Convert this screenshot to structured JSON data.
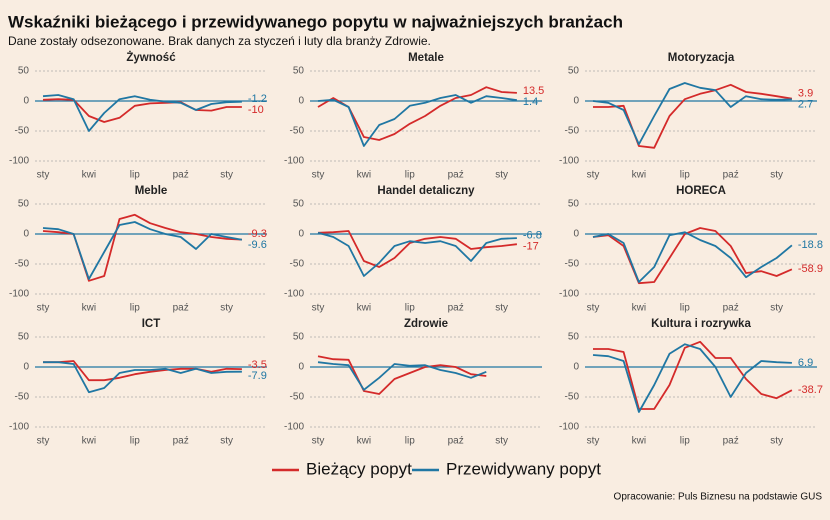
{
  "title": "Wskaźniki bieżącego i przewidywanego popytu w najważniejszych branżach",
  "subtitle": "Dane zostały odsezonowane. Brak danych za styczeń i luty dla branży Zdrowie.",
  "source": "Opracowanie: Puls Biznesu na podstawie GUS",
  "chart_data": [
    {
      "type": "line",
      "title": "Żywność",
      "categories": [
        "sty",
        null,
        null,
        "kwi",
        null,
        null,
        "lip",
        null,
        null,
        "paź",
        null,
        null,
        "sty",
        null
      ],
      "ylim": [
        -105,
        55
      ],
      "yticks": [
        50,
        0,
        -50,
        -100
      ],
      "grid": true,
      "series": [
        {
          "name": "Bieżący popyt",
          "color": "#d42a2a",
          "values": [
            2,
            3,
            2,
            -25,
            -35,
            -28,
            -8,
            -4,
            -3,
            -2,
            -15,
            -16,
            -10,
            -10
          ]
        },
        {
          "name": "Przewidywany popyt",
          "color": "#2077a3",
          "values": [
            8,
            10,
            3,
            -50,
            -20,
            3,
            8,
            2,
            -1,
            -3,
            -15,
            -5,
            -2,
            -1.2
          ]
        }
      ]
    },
    {
      "type": "line",
      "title": "Metale",
      "categories": [
        "sty",
        null,
        null,
        "kwi",
        null,
        null,
        "lip",
        null,
        null,
        "paź",
        null,
        null,
        "sty",
        null
      ],
      "ylim": [
        -105,
        55
      ],
      "yticks": [
        50,
        0,
        -50,
        -100
      ],
      "grid": true,
      "series": [
        {
          "name": "Bieżący popyt",
          "color": "#d42a2a",
          "values": [
            -10,
            5,
            -10,
            -60,
            -65,
            -55,
            -38,
            -25,
            -8,
            5,
            10,
            23,
            15,
            13.5
          ]
        },
        {
          "name": "Przewidywany popyt",
          "color": "#2077a3",
          "values": [
            0,
            2,
            -10,
            -75,
            -40,
            -30,
            -8,
            -3,
            5,
            10,
            -3,
            8,
            5,
            1.4
          ]
        }
      ]
    },
    {
      "type": "line",
      "title": "Motoryzacja",
      "categories": [
        "sty",
        null,
        null,
        "kwi",
        null,
        null,
        "lip",
        null,
        null,
        "paź",
        null,
        null,
        "sty",
        null
      ],
      "ylim": [
        -105,
        55
      ],
      "yticks": [
        50,
        0,
        -50,
        -100
      ],
      "grid": true,
      "series": [
        {
          "name": "Bieżący popyt",
          "color": "#d42a2a",
          "values": [
            -10,
            -10,
            -8,
            -75,
            -78,
            -25,
            3,
            12,
            18,
            27,
            15,
            12,
            8,
            3.9
          ]
        },
        {
          "name": "Przewidywany popyt",
          "color": "#2077a3",
          "values": [
            0,
            -3,
            -15,
            -72,
            -25,
            20,
            30,
            22,
            18,
            -10,
            8,
            3,
            2,
            2.7
          ]
        }
      ]
    },
    {
      "type": "line",
      "title": "Meble",
      "categories": [
        "sty",
        null,
        null,
        "kwi",
        null,
        null,
        "lip",
        null,
        null,
        "paź",
        null,
        null,
        "sty",
        null
      ],
      "ylim": [
        -105,
        55
      ],
      "yticks": [
        50,
        0,
        -50,
        -100
      ],
      "grid": true,
      "series": [
        {
          "name": "Bieżący popyt",
          "color": "#d42a2a",
          "values": [
            5,
            3,
            0,
            -78,
            -70,
            25,
            32,
            18,
            10,
            3,
            0,
            -5,
            -8,
            -9.3
          ]
        },
        {
          "name": "Przewidywany popyt",
          "color": "#2077a3",
          "values": [
            10,
            8,
            0,
            -75,
            -30,
            15,
            20,
            8,
            0,
            -5,
            -25,
            0,
            -5,
            -9.6
          ]
        }
      ]
    },
    {
      "type": "line",
      "title": "Handel detaliczny",
      "categories": [
        "sty",
        null,
        null,
        "kwi",
        null,
        null,
        "lip",
        null,
        null,
        "paź",
        null,
        null,
        "sty",
        null
      ],
      "ylim": [
        -105,
        55
      ],
      "yticks": [
        50,
        0,
        -50,
        -100
      ],
      "grid": true,
      "series": [
        {
          "name": "Bieżący popyt",
          "color": "#d42a2a",
          "values": [
            2,
            3,
            5,
            -45,
            -55,
            -40,
            -15,
            -8,
            -5,
            -8,
            -25,
            -22,
            -20,
            -17
          ]
        },
        {
          "name": "Przewidywany popyt",
          "color": "#2077a3",
          "values": [
            2,
            -5,
            -20,
            -70,
            -48,
            -20,
            -12,
            -15,
            -12,
            -20,
            -45,
            -15,
            -8,
            -6.8
          ]
        }
      ]
    },
    {
      "type": "line",
      "title": "HORECA",
      "categories": [
        "sty",
        null,
        null,
        "kwi",
        null,
        null,
        "lip",
        null,
        null,
        "paź",
        null,
        null,
        "sty",
        null
      ],
      "ylim": [
        -105,
        55
      ],
      "yticks": [
        50,
        0,
        -50,
        -100
      ],
      "grid": true,
      "series": [
        {
          "name": "Bieżący popyt",
          "color": "#d42a2a",
          "values": [
            -5,
            -2,
            -20,
            -82,
            -80,
            -40,
            0,
            10,
            5,
            -20,
            -65,
            -62,
            -70,
            -58.9
          ]
        },
        {
          "name": "Przewidywany popyt",
          "color": "#2077a3",
          "values": [
            -5,
            0,
            -15,
            -80,
            -55,
            -2,
            3,
            -10,
            -20,
            -40,
            -72,
            -55,
            -40,
            -18.8
          ]
        }
      ]
    },
    {
      "type": "line",
      "title": "ICT",
      "categories": [
        "sty",
        null,
        null,
        "kwi",
        null,
        null,
        "lip",
        null,
        null,
        "paź",
        null,
        null,
        "sty",
        null
      ],
      "ylim": [
        -105,
        55
      ],
      "yticks": [
        50,
        0,
        -50,
        -100
      ],
      "grid": true,
      "series": [
        {
          "name": "Bieżący popyt",
          "color": "#d42a2a",
          "values": [
            8,
            8,
            10,
            -22,
            -22,
            -18,
            -12,
            -8,
            -5,
            -3,
            -3,
            -8,
            -3,
            -3.5
          ]
        },
        {
          "name": "Przewidywany popyt",
          "color": "#2077a3",
          "values": [
            8,
            8,
            5,
            -42,
            -35,
            -10,
            -5,
            -5,
            -3,
            -10,
            -3,
            -10,
            -8,
            -7.9
          ]
        }
      ]
    },
    {
      "type": "line",
      "title": "Zdrowie",
      "categories": [
        "sty",
        null,
        null,
        "kwi",
        null,
        null,
        "lip",
        null,
        null,
        "paź",
        null,
        null,
        "sty",
        null
      ],
      "ylim": [
        -105,
        55
      ],
      "yticks": [
        50,
        0,
        -50,
        -100
      ],
      "grid": true,
      "series": [
        {
          "name": "Bieżący popyt",
          "color": "#d42a2a",
          "values": [
            18,
            13,
            12,
            -40,
            -45,
            -20,
            -10,
            0,
            3,
            0,
            -12,
            -15,
            null,
            null
          ]
        },
        {
          "name": "Przewidywany popyt",
          "color": "#2077a3",
          "values": [
            8,
            5,
            3,
            -38,
            -18,
            5,
            2,
            3,
            -5,
            -10,
            -18,
            -8,
            null,
            null
          ]
        }
      ]
    },
    {
      "type": "line",
      "title": "Kultura i rozrywka",
      "categories": [
        "sty",
        null,
        null,
        "kwi",
        null,
        null,
        "lip",
        null,
        null,
        "paź",
        null,
        null,
        "sty",
        null
      ],
      "ylim": [
        -105,
        55
      ],
      "yticks": [
        50,
        0,
        -50,
        -100
      ],
      "grid": true,
      "series": [
        {
          "name": "Bieżący popyt",
          "color": "#d42a2a",
          "values": [
            30,
            30,
            25,
            -70,
            -70,
            -30,
            32,
            42,
            15,
            15,
            -20,
            -45,
            -52,
            -38.7
          ]
        },
        {
          "name": "Przewidywany popyt",
          "color": "#2077a3",
          "values": [
            20,
            18,
            10,
            -75,
            -30,
            22,
            38,
            30,
            0,
            -50,
            -10,
            10,
            8,
            6.9
          ]
        }
      ]
    }
  ]
}
